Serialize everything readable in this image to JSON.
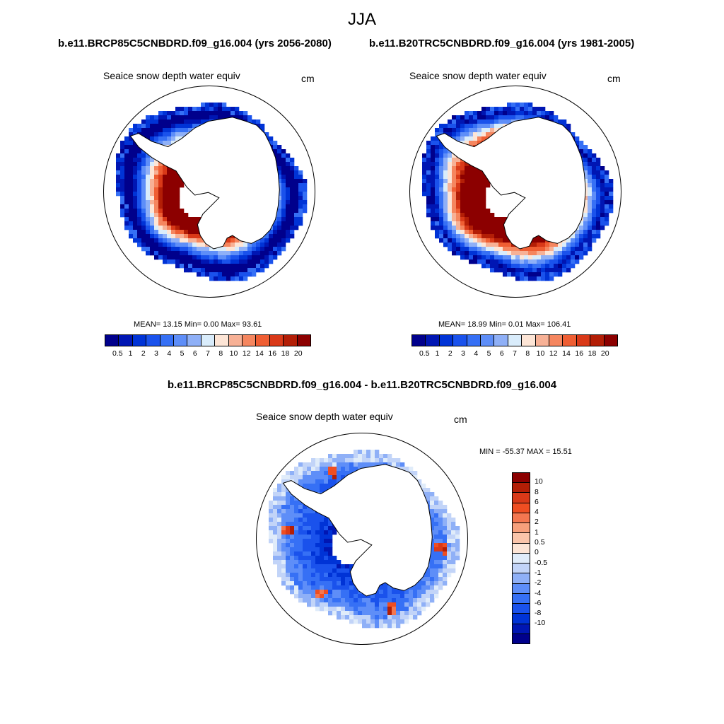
{
  "title": "JJA",
  "colors": {
    "abs_levels": [
      "#00008c",
      "#0016b3",
      "#0033d6",
      "#1a52ec",
      "#3670f5",
      "#5e8ef8",
      "#8fb0f7",
      "#d9ecfb",
      "#fde5d6",
      "#f7b196",
      "#f5865f",
      "#ef5e33",
      "#d93918",
      "#b31e06",
      "#8c0000"
    ],
    "diff_levels": [
      "#00008c",
      "#0016b3",
      "#0033d6",
      "#1a52ec",
      "#3670f5",
      "#5e8ef8",
      "#8fb0f7",
      "#c2d4f8",
      "#e0ecfa",
      "#fde5d6",
      "#fbc5aa",
      "#f7a07c",
      "#f47750",
      "#ef4e22",
      "#d93918",
      "#b31e06",
      "#8c0000"
    ],
    "land": "#ffffff",
    "outline": "#000000"
  },
  "panels": {
    "left": {
      "case": "b.e11.BRCP85C5CNBDRD.f09_g16.004 (yrs 2056-2080)",
      "variable": "Seaice snow depth water equiv",
      "units": "cm",
      "stats": "MEAN=  13.15  Min=   0.00  Max=  93.61"
    },
    "right": {
      "case": "b.e11.B20TRC5CNBDRD.f09_g16.004 (yrs 1981-2005)",
      "variable": "Seaice snow depth water equiv",
      "units": "cm",
      "stats": "MEAN=  18.99  Min=   0.01  Max= 106.41"
    },
    "diff": {
      "case": "b.e11.BRCP85C5CNBDRD.f09_g16.004 - b.e11.B20TRC5CNBDRD.f09_g16.004",
      "variable": "Seaice snow depth water equiv",
      "units": "cm",
      "stats": "MIN = -55.37 MAX =  15.51"
    }
  },
  "chart_data": [
    {
      "type": "heatmap",
      "title": "b.e11.BRCP85C5CNBDRD.f09_g16.004 (yrs 2056-2080)",
      "subtitle": "Seaice snow depth water equiv",
      "units": "cm",
      "projection": "south polar stereographic",
      "mean": 13.15,
      "min": 0.0,
      "max": 93.61,
      "levels": [
        "0.5",
        "1",
        "2",
        "3",
        "4",
        "5",
        "6",
        "7",
        "8",
        "10",
        "12",
        "14",
        "16",
        "18",
        "20"
      ]
    },
    {
      "type": "heatmap",
      "title": "b.e11.B20TRC5CNBDRD.f09_g16.004 (yrs 1981-2005)",
      "subtitle": "Seaice snow depth water equiv",
      "units": "cm",
      "projection": "south polar stereographic",
      "mean": 18.99,
      "min": 0.01,
      "max": 106.41,
      "levels": [
        "0.5",
        "1",
        "2",
        "3",
        "4",
        "5",
        "6",
        "7",
        "8",
        "10",
        "12",
        "14",
        "16",
        "18",
        "20"
      ]
    },
    {
      "type": "heatmap",
      "title": "b.e11.BRCP85C5CNBDRD.f09_g16.004 - b.e11.B20TRC5CNBDRD.f09_g16.004",
      "subtitle": "Seaice snow depth water equiv",
      "units": "cm",
      "projection": "south polar stereographic",
      "min": -55.37,
      "max": 15.51,
      "levels": [
        "10",
        "8",
        "6",
        "4",
        "2",
        "1",
        "0.5",
        "0",
        "-0.5",
        "-1",
        "-2",
        "-4",
        "-6",
        "-8",
        "-10"
      ]
    }
  ]
}
